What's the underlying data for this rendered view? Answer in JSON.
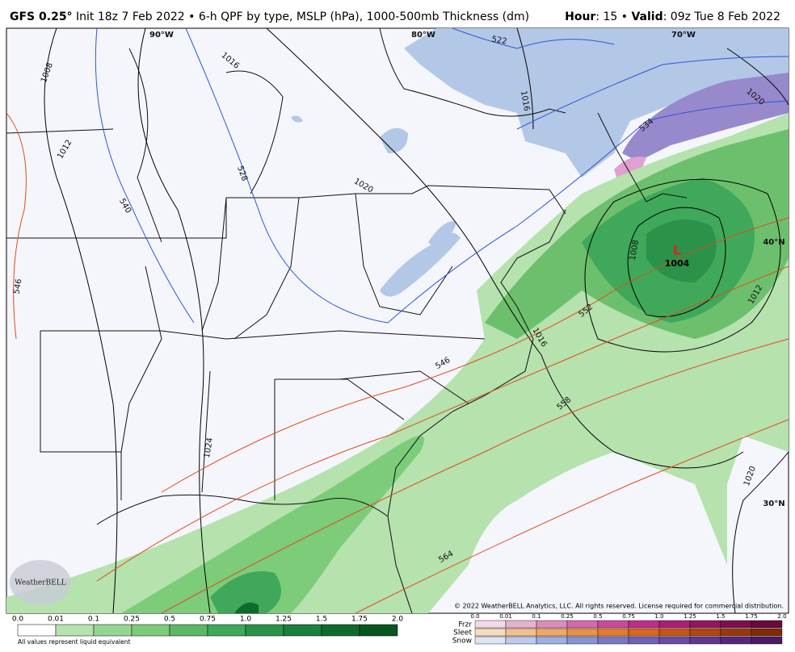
{
  "header": {
    "model": "GFS 0.25°",
    "description": "Init 18z 7 Feb 2022 • 6-h QPF by type, MSLP (hPa), 1000-500mb Thickness (dm)",
    "hour_label": "Hour",
    "hour_value": ": 15 •",
    "valid_label": "Valid",
    "valid_value": ": 09z Tue 8 Feb 2022"
  },
  "map": {
    "longitudes": [
      "90°W",
      "80°W",
      "70°W"
    ],
    "latitudes": [
      "40°N",
      "30°N"
    ],
    "isobars": [
      "1008",
      "1016",
      "1012",
      "1020",
      "1016",
      "1020",
      "1008",
      "1012",
      "1016",
      "1024",
      "1020"
    ],
    "thickness": [
      "522",
      "534",
      "528",
      "540",
      "546",
      "552",
      "546",
      "558",
      "564"
    ],
    "low": {
      "symbol": "L",
      "pressure": "1004"
    },
    "logo": "WeatherBELL",
    "copyright": "© 2022 WeatherBELL Analytics, LLC. All rights reserved. License required for commercial distribution."
  },
  "legend": {
    "rain_ticks": [
      "0.0",
      "0.01",
      "0.1",
      "0.25",
      "0.5",
      "0.75",
      "1.0",
      "1.25",
      "1.5",
      "1.75",
      "2.0"
    ],
    "note": "All values represent liquid equivalent",
    "types": [
      "Frzr",
      "Sleet",
      "Snow"
    ],
    "type_ticks": [
      "0.0",
      "0.01",
      "0.1",
      "0.25",
      "0.5",
      "0.75",
      "1.0",
      "1.25",
      "1.5",
      "1.75",
      "2.0"
    ]
  }
}
